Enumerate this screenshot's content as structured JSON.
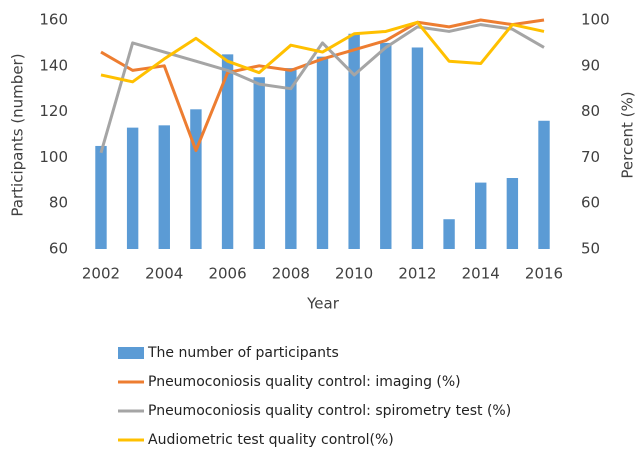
{
  "chart_data": {
    "type": "combo",
    "x": [
      2002,
      2003,
      2004,
      2005,
      2006,
      2007,
      2008,
      2009,
      2010,
      2011,
      2012,
      2013,
      2014,
      2015,
      2016
    ],
    "xlim": [
      2001.4,
      2016.6
    ],
    "xticks": [
      2002,
      2004,
      2006,
      2008,
      2010,
      2012,
      2014,
      2016
    ],
    "ylim": [
      60,
      160
    ],
    "yticks": [
      60,
      80,
      100,
      120,
      140,
      160
    ],
    "y2lim": [
      50,
      100
    ],
    "y2ticks": [
      50,
      60,
      70,
      80,
      90,
      100
    ],
    "xlabel": "Year",
    "ylabel": "Participants (number)",
    "y2label": "Percent (%)",
    "legend": "bottom",
    "series": [
      {
        "name": "The number of participants",
        "type": "bar",
        "color": "#5b9bd5",
        "values": [
          105,
          113,
          114,
          121,
          145,
          135,
          139,
          144,
          154,
          150,
          148,
          73,
          89,
          91,
          116
        ]
      },
      {
        "name": "Pneumoconiosis quality control: imaging (%)",
        "type": "line",
        "axis": "y2",
        "color": "#ed7d31",
        "values": [
          93,
          89,
          90,
          71.5,
          88.5,
          90,
          89,
          91.5,
          93.5,
          95.5,
          99.5,
          98.5,
          100,
          99,
          100
        ]
      },
      {
        "name": "Pneumoconiosis quality control: spirometry test (%)",
        "type": "line",
        "axis": "y2",
        "color": "#a5a5a5",
        "values": [
          71,
          95,
          93,
          91,
          89,
          86,
          85,
          95,
          88,
          94,
          98.5,
          97.5,
          99,
          98,
          94
        ]
      },
      {
        "name": "Audiometric test quality control(%)",
        "type": "line",
        "axis": "y2",
        "color": "#ffc000",
        "values": [
          88,
          86.5,
          91.5,
          96,
          91,
          88.5,
          94.5,
          93,
          97,
          97.5,
          99.5,
          91,
          90.5,
          99,
          97.5
        ]
      }
    ]
  }
}
